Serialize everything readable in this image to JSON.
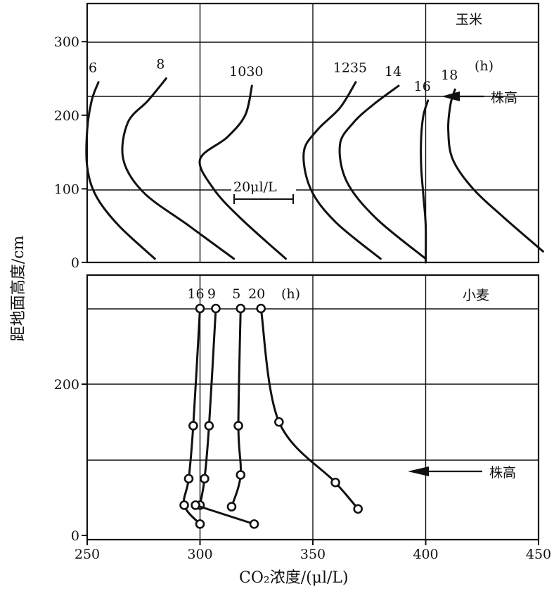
{
  "chart_data": [
    {
      "type": "line",
      "panel_title": "玉米",
      "xlim": [
        250,
        450
      ],
      "ylim": [
        0,
        350
      ],
      "yticks": [
        "0",
        "100",
        "200",
        "300"
      ],
      "series": [
        {
          "name": "6",
          "points": [
            [
              255,
              245
            ],
            [
              252,
              220
            ],
            [
              250,
              180
            ],
            [
              250,
              130
            ],
            [
              254,
              90
            ],
            [
              264,
              50
            ],
            [
              280,
              5
            ]
          ]
        },
        {
          "name": "8",
          "points": [
            [
              285,
              250
            ],
            [
              277,
              220
            ],
            [
              268,
              190
            ],
            [
              266,
              140
            ],
            [
              275,
              95
            ],
            [
              295,
              50
            ],
            [
              315,
              5
            ]
          ]
        },
        {
          "name": "1030",
          "points": [
            [
              323,
              240
            ],
            [
              320,
              200
            ],
            [
              312,
              170
            ],
            [
              300,
              140
            ],
            [
              306,
              100
            ],
            [
              318,
              60
            ],
            [
              338,
              5
            ]
          ]
        },
        {
          "name": "1235",
          "points": [
            [
              369,
              245
            ],
            [
              362,
              210
            ],
            [
              352,
              180
            ],
            [
              346,
              150
            ],
            [
              349,
              100
            ],
            [
              360,
              55
            ],
            [
              380,
              5
            ]
          ]
        },
        {
          "name": "14",
          "points": [
            [
              388,
              240
            ],
            [
              377,
              215
            ],
            [
              368,
              190
            ],
            [
              362,
              160
            ],
            [
              365,
              110
            ],
            [
              378,
              60
            ],
            [
              400,
              5
            ]
          ]
        },
        {
          "name": "16",
          "points": [
            [
              401,
              220
            ],
            [
              399,
              200
            ],
            [
              398,
              170
            ],
            [
              398,
              130
            ],
            [
              399,
              90
            ],
            [
              400,
              50
            ],
            [
              400,
              0
            ]
          ]
        },
        {
          "name": "18",
          "points": [
            [
              413,
              235
            ],
            [
              411,
              215
            ],
            [
              410,
              180
            ],
            [
              412,
              140
            ],
            [
              421,
              100
            ],
            [
              435,
              60
            ],
            [
              452,
              15
            ]
          ]
        }
      ],
      "annotations": {
        "height_label": "株高",
        "time_unit": "(h)",
        "scale_bar": "20μl/L"
      }
    },
    {
      "type": "line",
      "panel_title": "小麦",
      "xlim": [
        250,
        450
      ],
      "ylim": [
        0,
        350
      ],
      "yticks": [
        "0",
        "200"
      ],
      "series": [
        {
          "name": "16",
          "points": [
            [
              300,
              300
            ],
            [
              297,
              145
            ],
            [
              295,
              75
            ],
            [
              293,
              40
            ],
            [
              300,
              15
            ]
          ]
        },
        {
          "name": "9",
          "points": [
            [
              307,
              300
            ],
            [
              304,
              145
            ],
            [
              302,
              75
            ],
            [
              300,
              40
            ]
          ]
        },
        {
          "name": "5",
          "points": [
            [
              318,
              300
            ],
            [
              317,
              145
            ],
            [
              318,
              80
            ],
            [
              314,
              38
            ]
          ]
        },
        {
          "name": "20",
          "points": [
            [
              327,
              300
            ],
            [
              335,
              150
            ],
            [
              360,
              70
            ],
            [
              370,
              35
            ]
          ]
        }
      ],
      "extra_segments": [
        [
          [
            298,
            40
          ],
          [
            324,
            15
          ]
        ]
      ],
      "annotations": {
        "height_label": "株高",
        "time_unit": "(h)"
      }
    }
  ],
  "axes": {
    "xticks": [
      "250",
      "300",
      "350",
      "400",
      "450"
    ],
    "xlabel": "CO₂浓度/(μl/L)",
    "ylabel": "距地面高度/cm"
  }
}
